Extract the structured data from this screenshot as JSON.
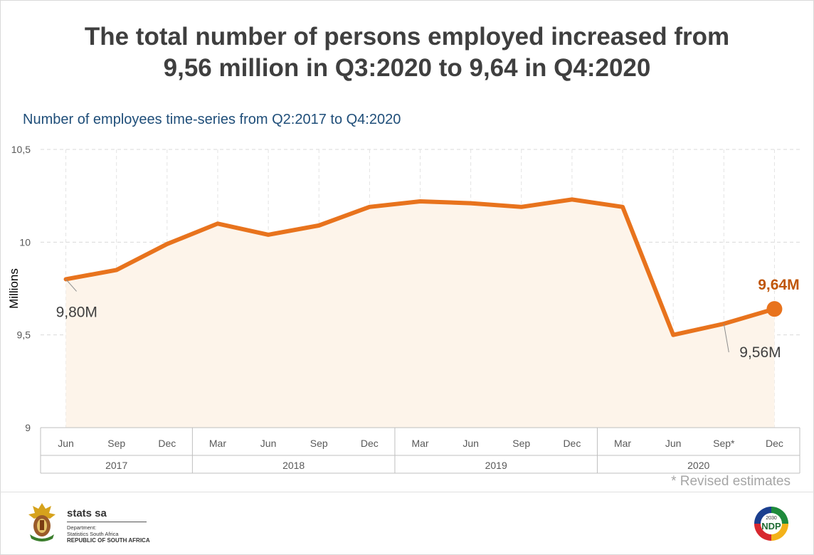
{
  "header": {
    "title_line1": "The total number of persons employed increased from",
    "title_line2": "9,56 million in Q3:2020 to 9,64 in Q4:2020"
  },
  "footnote": "* Revised estimates",
  "footer": {
    "brand": "stats sa",
    "dept_label": "Department:",
    "dept_name": "Statistics South Africa",
    "country": "REPUBLIC OF SOUTH AFRICA",
    "ndp_label": "NDP",
    "ndp_year": "2030"
  },
  "colors": {
    "line": "#e8731d",
    "fill": "#fdf4ea",
    "highlight_label": "#c0560a",
    "title": "#3f3f3f",
    "subtitle": "#1f4e79"
  },
  "chart_data": {
    "type": "area",
    "title": "Number of employees time-series from Q2:2017 to Q4:2020",
    "ylabel": "Millions",
    "ylim": [
      9,
      10.5
    ],
    "yticks": [
      "9",
      "9,5",
      "10",
      "10,5"
    ],
    "grid": true,
    "categories": [
      "Jun",
      "Sep",
      "Dec",
      "Mar",
      "Jun",
      "Sep",
      "Dec",
      "Mar",
      "Jun",
      "Sep",
      "Dec",
      "Mar",
      "Jun",
      "Sep*",
      "Dec"
    ],
    "groups": [
      {
        "label": "2017",
        "count": 3
      },
      {
        "label": "2018",
        "count": 4
      },
      {
        "label": "2019",
        "count": 4
      },
      {
        "label": "2020",
        "count": 4
      }
    ],
    "series": [
      {
        "values": [
          9.8,
          9.85,
          9.99,
          10.1,
          10.04,
          10.09,
          10.19,
          10.22,
          10.21,
          10.19,
          10.23,
          10.19,
          9.5,
          9.56,
          9.64
        ]
      }
    ],
    "annotations": [
      {
        "index": 0,
        "text": "9,80M"
      },
      {
        "index": 13,
        "text": "9,56M"
      },
      {
        "index": 14,
        "text": "9,64M",
        "highlight": true
      }
    ]
  }
}
